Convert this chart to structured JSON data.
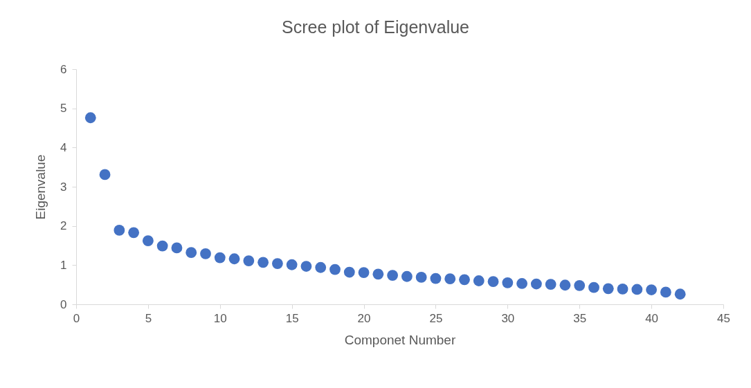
{
  "chart_data": {
    "type": "scatter",
    "title": "Scree plot of Eigenvalue",
    "xlabel": "Componet Number",
    "ylabel": "Eigenvalue",
    "x": [
      1,
      2,
      3,
      4,
      5,
      6,
      7,
      8,
      9,
      10,
      11,
      12,
      13,
      14,
      15,
      16,
      17,
      18,
      19,
      20,
      21,
      22,
      23,
      24,
      25,
      26,
      27,
      28,
      29,
      30,
      31,
      32,
      33,
      34,
      35,
      36,
      37,
      38,
      39,
      40,
      41,
      42
    ],
    "series": [
      {
        "color": "#4472c4",
        "values": [
          4.76,
          3.31,
          1.89,
          1.83,
          1.62,
          1.49,
          1.44,
          1.32,
          1.29,
          1.19,
          1.16,
          1.11,
          1.07,
          1.04,
          1.01,
          0.97,
          0.94,
          0.89,
          0.82,
          0.81,
          0.77,
          0.74,
          0.71,
          0.69,
          0.66,
          0.65,
          0.63,
          0.6,
          0.58,
          0.55,
          0.53,
          0.52,
          0.51,
          0.49,
          0.48,
          0.43,
          0.4,
          0.39,
          0.38,
          0.37,
          0.31,
          0.26
        ]
      }
    ],
    "xlim": [
      0,
      45
    ],
    "ylim": [
      0,
      6
    ],
    "xticks": [
      0,
      5,
      10,
      15,
      20,
      25,
      30,
      35,
      40,
      45
    ],
    "yticks": [
      0,
      1,
      2,
      3,
      4,
      5,
      6
    ],
    "grid": false,
    "marker": "circle",
    "legend": false
  }
}
